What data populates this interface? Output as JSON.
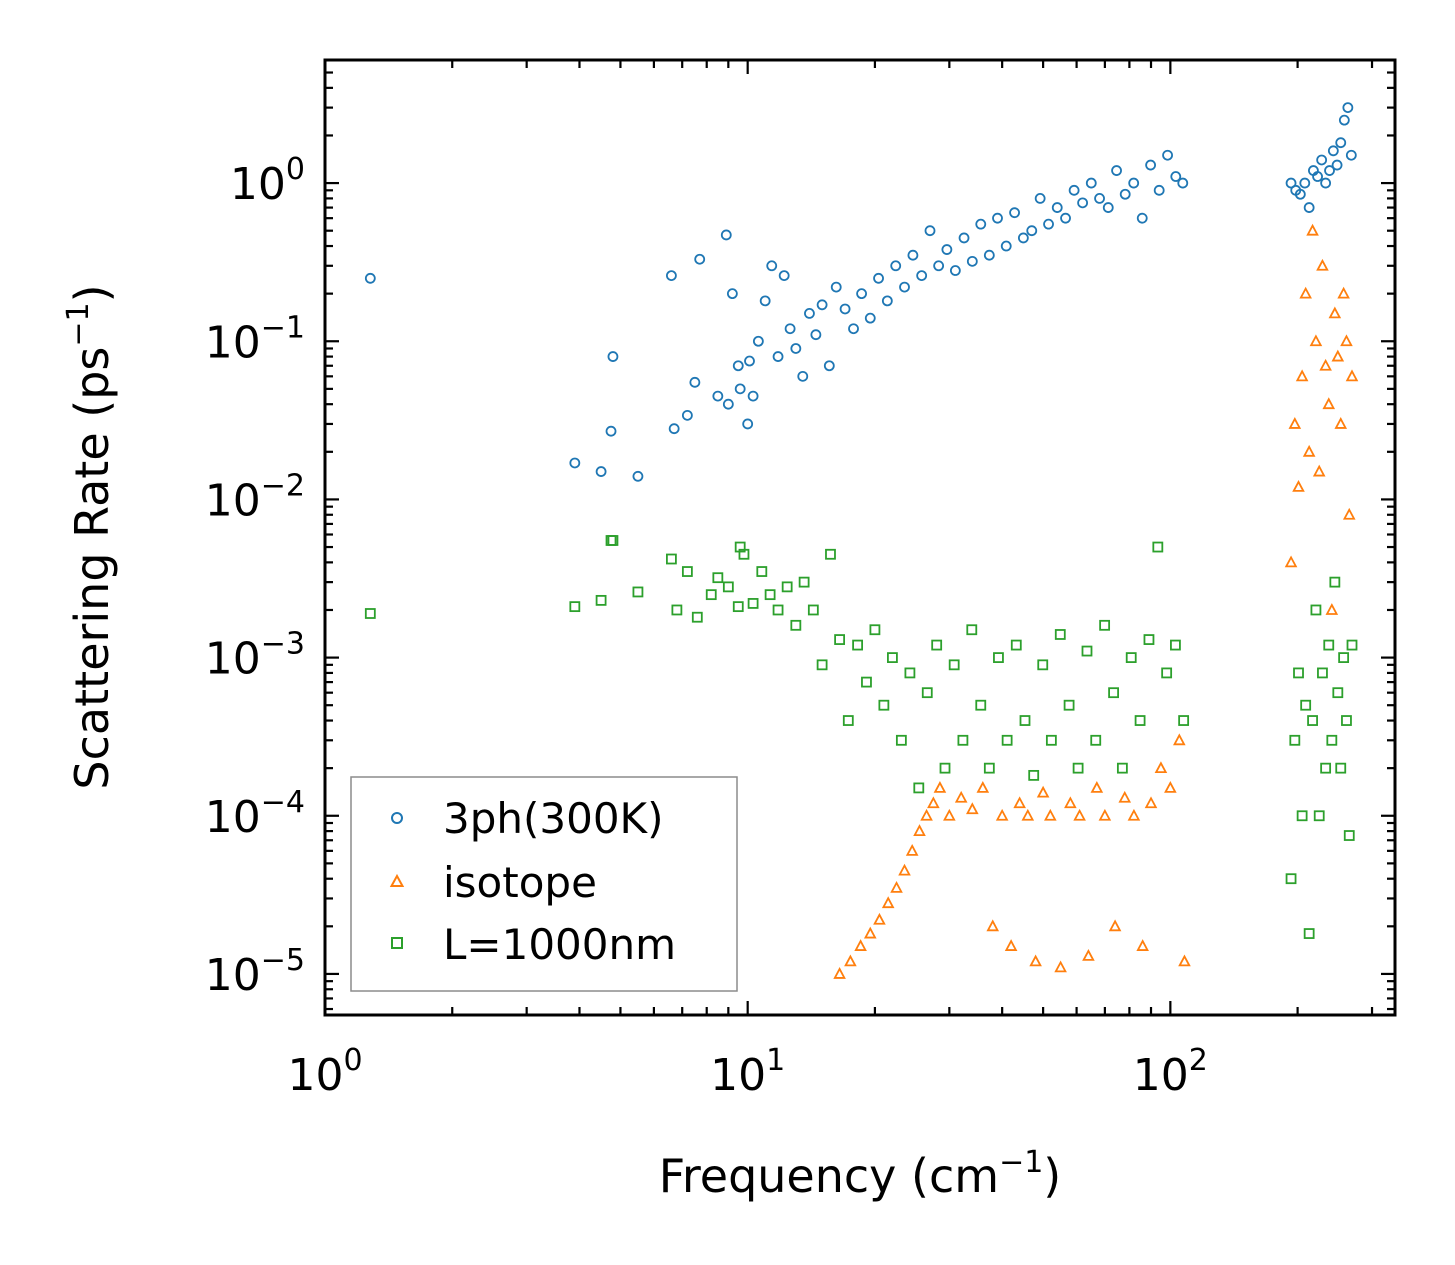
{
  "chart_data": {
    "type": "scatter",
    "title": "",
    "xlabel": "Frequency (cm$^{-1}$)",
    "xlabel_text": "Frequency (cm",
    "xlabel_sup": "−1",
    "xlabel_end": ")",
    "ylabel_text": "Scattering Rate (ps",
    "ylabel_sup": "−1",
    "ylabel_end": ")",
    "xscale": "log",
    "yscale": "log",
    "xlim": [
      1.0,
      340
    ],
    "ylim": [
      5.5e-06,
      6.0
    ],
    "x_ticks": [
      {
        "value": 1,
        "base": "10",
        "exp": "0"
      },
      {
        "value": 10,
        "base": "10",
        "exp": "1"
      },
      {
        "value": 100,
        "base": "10",
        "exp": "2"
      }
    ],
    "y_ticks": [
      {
        "value": 1,
        "base": "10",
        "exp": "0"
      },
      {
        "value": 0.1,
        "base": "10",
        "exp": "−1"
      },
      {
        "value": 0.01,
        "base": "10",
        "exp": "−2"
      },
      {
        "value": 0.001,
        "base": "10",
        "exp": "−3"
      },
      {
        "value": 0.0001,
        "base": "10",
        "exp": "−4"
      },
      {
        "value": 1e-05,
        "base": "10",
        "exp": "−5"
      }
    ],
    "legend_position": "lower-left",
    "series": [
      {
        "name": "3ph(300K)",
        "marker": "circle",
        "color": "#1f77b4",
        "x": [
          1.28,
          3.9,
          4.5,
          4.75,
          4.8,
          5.5,
          6.6,
          6.7,
          7.2,
          7.5,
          7.7,
          8.5,
          8.9,
          9.0,
          9.2,
          9.5,
          9.6,
          10.0,
          10.1,
          10.3,
          10.6,
          11.0,
          11.4,
          11.8,
          12.2,
          12.6,
          13.0,
          13.5,
          14.0,
          14.5,
          15.0,
          15.6,
          16.2,
          17.0,
          17.8,
          18.6,
          19.5,
          20.4,
          21.4,
          22.4,
          23.5,
          24.6,
          25.8,
          27.0,
          28.3,
          29.6,
          31.0,
          32.5,
          34.0,
          35.6,
          37.3,
          39.0,
          40.9,
          42.8,
          44.9,
          47.0,
          49.2,
          51.5,
          54.0,
          56.5,
          59.2,
          62.0,
          65.0,
          68.0,
          71.3,
          74.6,
          78.2,
          81.9,
          85.8,
          89.8,
          94.1,
          98.5,
          103.0,
          107.0,
          193,
          198,
          203,
          208,
          213,
          218,
          223,
          228,
          233,
          238,
          243,
          248,
          253,
          258,
          263,
          268
        ],
        "y": [
          0.25,
          0.017,
          0.015,
          0.027,
          0.08,
          0.014,
          0.26,
          0.028,
          0.034,
          0.055,
          0.33,
          0.045,
          0.47,
          0.04,
          0.2,
          0.07,
          0.05,
          0.03,
          0.075,
          0.045,
          0.1,
          0.18,
          0.3,
          0.08,
          0.26,
          0.12,
          0.09,
          0.06,
          0.15,
          0.11,
          0.17,
          0.07,
          0.22,
          0.16,
          0.12,
          0.2,
          0.14,
          0.25,
          0.18,
          0.3,
          0.22,
          0.35,
          0.26,
          0.5,
          0.3,
          0.38,
          0.28,
          0.45,
          0.32,
          0.55,
          0.35,
          0.6,
          0.4,
          0.65,
          0.45,
          0.5,
          0.8,
          0.55,
          0.7,
          0.6,
          0.9,
          0.75,
          1.0,
          0.8,
          0.7,
          1.2,
          0.85,
          1.0,
          0.6,
          1.3,
          0.9,
          1.5,
          1.1,
          1.0,
          1.0,
          0.9,
          0.85,
          1.0,
          0.7,
          1.2,
          1.1,
          1.4,
          1.0,
          1.2,
          1.6,
          1.3,
          1.8,
          2.5,
          3.0,
          1.5
        ]
      },
      {
        "name": "isotope",
        "marker": "triangle",
        "color": "#ff7f0e",
        "x": [
          16.5,
          17.5,
          18.5,
          19.5,
          20.5,
          21.5,
          22.5,
          23.5,
          24.5,
          25.5,
          26.5,
          27.5,
          28.5,
          30.0,
          32.0,
          34.0,
          36.0,
          38.0,
          40.0,
          42.0,
          44.0,
          46.0,
          48.0,
          50.0,
          52.0,
          55.0,
          58.0,
          61.0,
          64.0,
          67.0,
          70.0,
          74.0,
          78.0,
          82.0,
          86.0,
          90.0,
          95.0,
          100.0,
          105.0,
          108.0,
          193,
          197,
          201,
          205,
          209,
          213,
          217,
          221,
          225,
          229,
          233,
          237,
          241,
          245,
          249,
          253,
          257,
          261,
          265,
          269
        ],
        "y": [
          1e-05,
          1.2e-05,
          1.5e-05,
          1.8e-05,
          2.2e-05,
          2.8e-05,
          3.5e-05,
          4.5e-05,
          6e-05,
          8e-05,
          0.0001,
          0.00012,
          0.00015,
          0.0001,
          0.00013,
          0.00011,
          0.00015,
          2e-05,
          0.0001,
          1.5e-05,
          0.00012,
          0.0001,
          1.2e-05,
          0.00014,
          0.0001,
          1.1e-05,
          0.00012,
          0.0001,
          1.3e-05,
          0.00015,
          0.0001,
          2e-05,
          0.00013,
          0.0001,
          1.5e-05,
          0.00012,
          0.0002,
          0.00015,
          0.0003,
          1.2e-05,
          0.004,
          0.03,
          0.012,
          0.06,
          0.2,
          0.02,
          0.5,
          0.1,
          0.015,
          0.3,
          0.07,
          0.04,
          0.002,
          0.15,
          0.08,
          0.03,
          0.2,
          0.1,
          0.008,
          0.06
        ]
      },
      {
        "name": "L=1000nm",
        "marker": "square",
        "color": "#2ca02c",
        "x": [
          1.28,
          3.9,
          4.5,
          4.75,
          4.8,
          5.5,
          6.6,
          6.8,
          7.2,
          7.6,
          8.2,
          8.5,
          9.0,
          9.5,
          9.6,
          9.8,
          10.3,
          10.8,
          11.3,
          11.8,
          12.4,
          13.0,
          13.6,
          14.3,
          15.0,
          15.7,
          16.5,
          17.3,
          18.2,
          19.1,
          20.0,
          21.0,
          22.0,
          23.1,
          24.2,
          25.4,
          26.6,
          28.0,
          29.3,
          30.8,
          32.3,
          33.9,
          35.6,
          37.3,
          39.2,
          41.1,
          43.2,
          45.3,
          47.5,
          49.9,
          52.3,
          54.9,
          57.6,
          60.5,
          63.5,
          66.6,
          69.9,
          73.4,
          77.0,
          80.8,
          84.8,
          89.0,
          93.4,
          98.0,
          102.8,
          107.5,
          193,
          197,
          201,
          205,
          209,
          213,
          217,
          221,
          225,
          229,
          233,
          237,
          241,
          245,
          249,
          253,
          257,
          261,
          265,
          269
        ],
        "y": [
          0.0019,
          0.0021,
          0.0023,
          0.0055,
          0.0055,
          0.0026,
          0.0042,
          0.002,
          0.0035,
          0.0018,
          0.0025,
          0.0032,
          0.0028,
          0.0021,
          0.005,
          0.0045,
          0.0022,
          0.0035,
          0.0025,
          0.002,
          0.0028,
          0.0016,
          0.003,
          0.002,
          0.0009,
          0.0045,
          0.0013,
          0.0004,
          0.0012,
          0.0007,
          0.0015,
          0.0005,
          0.001,
          0.0003,
          0.0008,
          0.00015,
          0.0006,
          0.0012,
          0.0002,
          0.0009,
          0.0003,
          0.0015,
          0.0005,
          0.0002,
          0.001,
          0.0003,
          0.0012,
          0.0004,
          0.00018,
          0.0009,
          0.0003,
          0.0014,
          0.0005,
          0.0002,
          0.0011,
          0.0003,
          0.0016,
          0.0006,
          0.0002,
          0.001,
          0.0004,
          0.0013,
          0.005,
          0.0008,
          0.0012,
          0.0004,
          4e-05,
          0.0003,
          0.0008,
          0.0001,
          0.0005,
          1.8e-05,
          0.0004,
          0.002,
          0.0001,
          0.0008,
          0.0002,
          0.0012,
          0.0003,
          0.003,
          0.0006,
          0.0002,
          0.001,
          0.0004,
          7.5e-05,
          0.0012
        ]
      }
    ]
  }
}
